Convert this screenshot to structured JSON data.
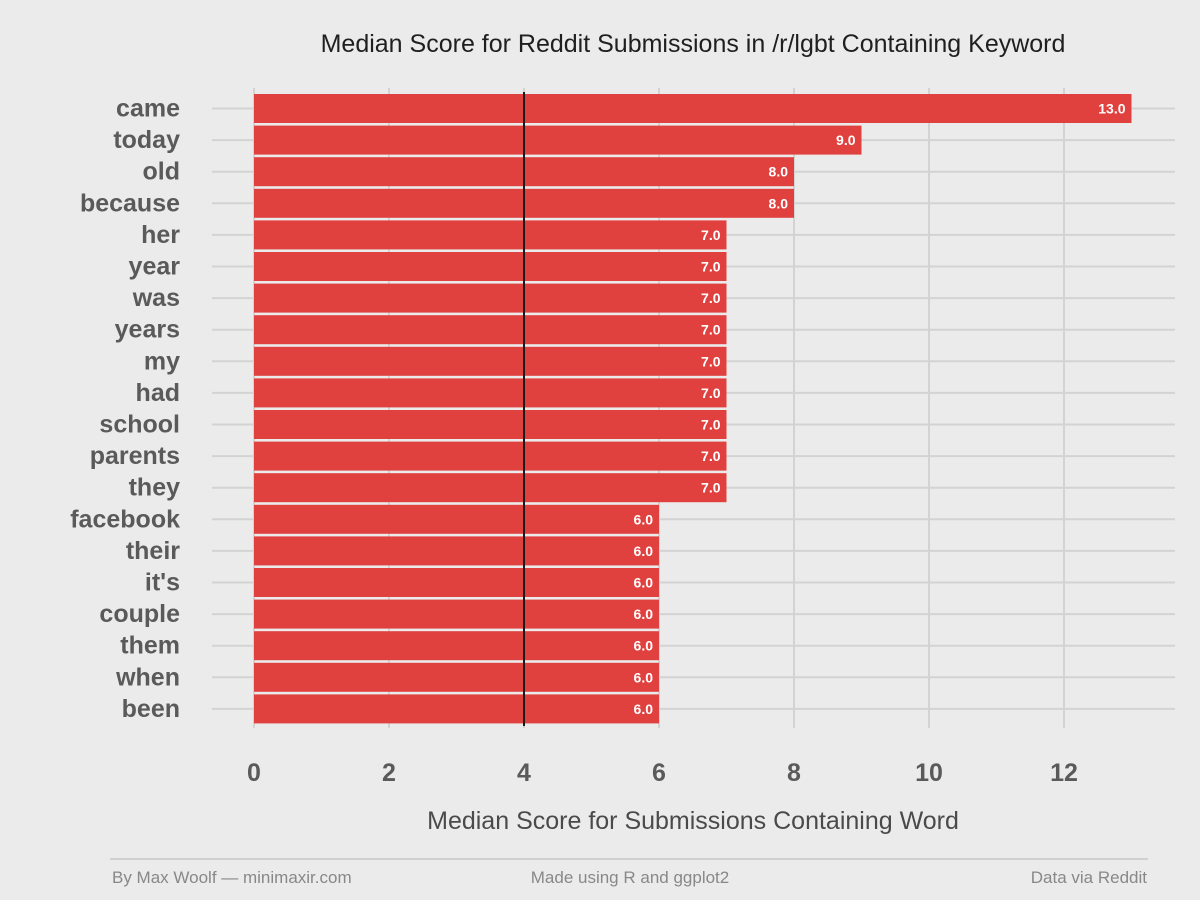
{
  "chart_data": {
    "type": "bar",
    "orientation": "horizontal",
    "title": "Median Score for Reddit Submissions in /r/lgbt Containing Keyword",
    "xlabel": "Median Score for Submissions Containing Word",
    "ylabel": "",
    "categories": [
      "came",
      "today",
      "old",
      "because",
      "her",
      "year",
      "was",
      "years",
      "my",
      "had",
      "school",
      "parents",
      "they",
      "facebook",
      "their",
      "it's",
      "couple",
      "them",
      "when",
      "been"
    ],
    "values": [
      13,
      9,
      8,
      8,
      7,
      7,
      7,
      7,
      7,
      7,
      7,
      7,
      7,
      6,
      6,
      6,
      6,
      6,
      6,
      6
    ],
    "data_labels": [
      "13.0",
      "9.0",
      "8.0",
      "8.0",
      "7.0",
      "7.0",
      "7.0",
      "7.0",
      "7.0",
      "7.0",
      "7.0",
      "7.0",
      "7.0",
      "6.0",
      "6.0",
      "6.0",
      "6.0",
      "6.0",
      "6.0",
      "6.0"
    ],
    "xlim": [
      0,
      13
    ],
    "xticks": [
      0,
      2,
      4,
      6,
      8,
      10,
      12
    ],
    "reference_line": 4,
    "grid": true,
    "bar_color": "#e0413f",
    "ref_line_color": "#1a1a1a",
    "background": "#ebebeb"
  },
  "footer": {
    "left": "By Max Woolf — minimaxir.com",
    "center": "Made using R and ggplot2",
    "right": "Data via Reddit"
  }
}
